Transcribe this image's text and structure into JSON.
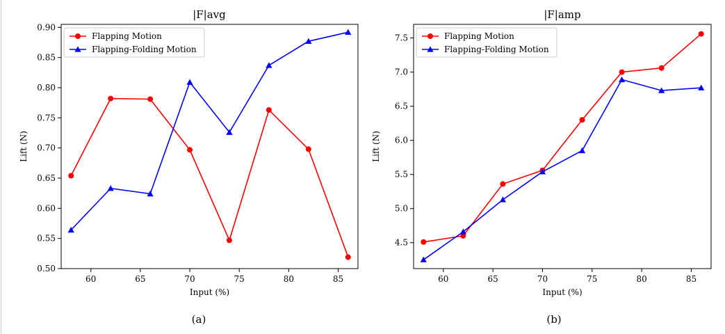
{
  "chart_data": [
    {
      "type": "line",
      "title": "|F|avg",
      "xlabel": "Input (%)",
      "ylabel": "Lift (N)",
      "caption": "(a)",
      "xlim": [
        57,
        87
      ],
      "ylim": [
        0.5,
        0.905
      ],
      "xticks": [
        60,
        65,
        70,
        75,
        80,
        85
      ],
      "xtick_labels": [
        "60",
        "65",
        "70",
        "75",
        "80",
        "85"
      ],
      "yticks": [
        0.5,
        0.55,
        0.6,
        0.65,
        0.7,
        0.75,
        0.8,
        0.85,
        0.9
      ],
      "ytick_labels": [
        "0.50",
        "0.55",
        "0.60",
        "0.65",
        "0.70",
        "0.75",
        "0.80",
        "0.85",
        "0.90"
      ],
      "legend_position": "top-left",
      "x": [
        58,
        62,
        66,
        70,
        74,
        78,
        82,
        86
      ],
      "series": [
        {
          "name": "Flapping Motion",
          "color": "#ff0000",
          "marker": "circle",
          "values": [
            0.654,
            0.782,
            0.781,
            0.697,
            0.547,
            0.763,
            0.698,
            0.519
          ]
        },
        {
          "name": "Flapping-Folding Motion",
          "color": "#0000ff",
          "marker": "triangle",
          "values": [
            0.564,
            0.633,
            0.624,
            0.809,
            0.726,
            0.837,
            0.877,
            0.892
          ]
        }
      ]
    },
    {
      "type": "line",
      "title": "|F|amp",
      "xlabel": "Input (%)",
      "ylabel": "Lift (N)",
      "caption": "(b)",
      "xlim": [
        57,
        87
      ],
      "ylim": [
        4.12,
        7.7
      ],
      "xticks": [
        60,
        65,
        70,
        75,
        80,
        85
      ],
      "xtick_labels": [
        "60",
        "65",
        "70",
        "75",
        "80",
        "85"
      ],
      "yticks": [
        4.5,
        5.0,
        5.5,
        6.0,
        6.5,
        7.0,
        7.5
      ],
      "ytick_labels": [
        "4.5",
        "5.0",
        "5.5",
        "6.0",
        "6.5",
        "7.0",
        "7.5"
      ],
      "legend_position": "top-left",
      "x": [
        58,
        62,
        66,
        70,
        74,
        78,
        82,
        86
      ],
      "series": [
        {
          "name": "Flapping Motion",
          "color": "#ff0000",
          "marker": "circle",
          "values": [
            4.51,
            4.6,
            5.36,
            5.56,
            6.3,
            7.0,
            7.06,
            7.56
          ]
        },
        {
          "name": "Flapping-Folding Motion",
          "color": "#0000ff",
          "marker": "triangle",
          "values": [
            4.25,
            4.66,
            5.13,
            5.54,
            5.85,
            6.89,
            6.73,
            6.77
          ]
        }
      ]
    }
  ]
}
